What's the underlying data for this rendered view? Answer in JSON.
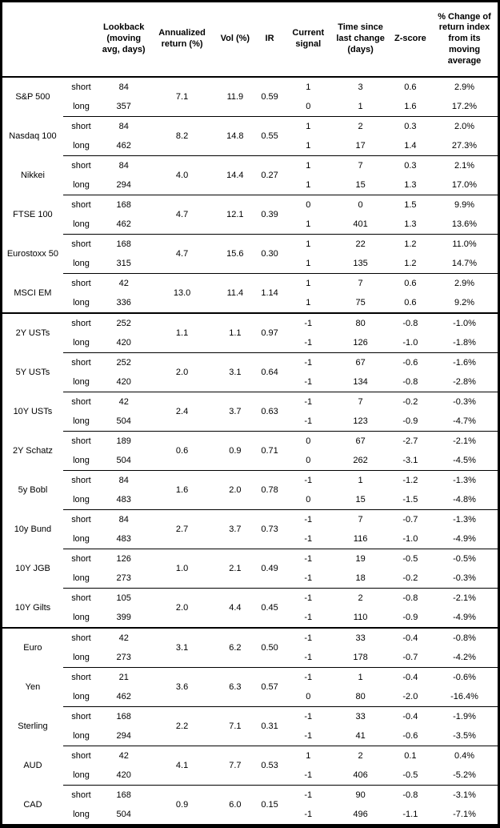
{
  "table": {
    "columns": [
      "Lookback (moving avg, days)",
      "Annualized return (%)",
      "Vol (%)",
      "IR",
      "Current signal",
      "Time since last change (days)",
      "Z-score",
      "% Change of return index from its moving average"
    ],
    "leg_labels": {
      "short": "short",
      "long": "long"
    },
    "groups": [
      {
        "asset": "S&P 500",
        "section_start": false,
        "annualized": "7.1",
        "vol": "11.9",
        "ir": "0.59",
        "short": {
          "lookback": "84",
          "signal": "1",
          "time": "3",
          "z": "0.6",
          "chg": "2.9%"
        },
        "long": {
          "lookback": "357",
          "signal": "0",
          "time": "1",
          "z": "1.6",
          "chg": "17.2%"
        }
      },
      {
        "asset": "Nasdaq 100",
        "section_start": false,
        "annualized": "8.2",
        "vol": "14.8",
        "ir": "0.55",
        "short": {
          "lookback": "84",
          "signal": "1",
          "time": "2",
          "z": "0.3",
          "chg": "2.0%"
        },
        "long": {
          "lookback": "462",
          "signal": "1",
          "time": "17",
          "z": "1.4",
          "chg": "27.3%"
        }
      },
      {
        "asset": "Nikkei",
        "section_start": false,
        "annualized": "4.0",
        "vol": "14.4",
        "ir": "0.27",
        "short": {
          "lookback": "84",
          "signal": "1",
          "time": "7",
          "z": "0.3",
          "chg": "2.1%"
        },
        "long": {
          "lookback": "294",
          "signal": "1",
          "time": "15",
          "z": "1.3",
          "chg": "17.0%"
        }
      },
      {
        "asset": "FTSE 100",
        "section_start": false,
        "annualized": "4.7",
        "vol": "12.1",
        "ir": "0.39",
        "short": {
          "lookback": "168",
          "signal": "0",
          "time": "0",
          "z": "1.5",
          "chg": "9.9%"
        },
        "long": {
          "lookback": "462",
          "signal": "1",
          "time": "401",
          "z": "1.3",
          "chg": "13.6%"
        }
      },
      {
        "asset": "Eurostoxx 50",
        "section_start": false,
        "annualized": "4.7",
        "vol": "15.6",
        "ir": "0.30",
        "short": {
          "lookback": "168",
          "signal": "1",
          "time": "22",
          "z": "1.2",
          "chg": "11.0%"
        },
        "long": {
          "lookback": "315",
          "signal": "1",
          "time": "135",
          "z": "1.2",
          "chg": "14.7%"
        }
      },
      {
        "asset": "MSCI EM",
        "section_start": false,
        "annualized": "13.0",
        "vol": "11.4",
        "ir": "1.14",
        "short": {
          "lookback": "42",
          "signal": "1",
          "time": "7",
          "z": "0.6",
          "chg": "2.9%"
        },
        "long": {
          "lookback": "336",
          "signal": "1",
          "time": "75",
          "z": "0.6",
          "chg": "9.2%"
        }
      },
      {
        "asset": "2Y USTs",
        "section_start": true,
        "annualized": "1.1",
        "vol": "1.1",
        "ir": "0.97",
        "short": {
          "lookback": "252",
          "signal": "-1",
          "time": "80",
          "z": "-0.8",
          "chg": "-1.0%"
        },
        "long": {
          "lookback": "420",
          "signal": "-1",
          "time": "126",
          "z": "-1.0",
          "chg": "-1.8%"
        }
      },
      {
        "asset": "5Y USTs",
        "section_start": false,
        "annualized": "2.0",
        "vol": "3.1",
        "ir": "0.64",
        "short": {
          "lookback": "252",
          "signal": "-1",
          "time": "67",
          "z": "-0.6",
          "chg": "-1.6%"
        },
        "long": {
          "lookback": "420",
          "signal": "-1",
          "time": "134",
          "z": "-0.8",
          "chg": "-2.8%"
        }
      },
      {
        "asset": "10Y USTs",
        "section_start": false,
        "annualized": "2.4",
        "vol": "3.7",
        "ir": "0.63",
        "short": {
          "lookback": "42",
          "signal": "-1",
          "time": "7",
          "z": "-0.2",
          "chg": "-0.3%"
        },
        "long": {
          "lookback": "504",
          "signal": "-1",
          "time": "123",
          "z": "-0.9",
          "chg": "-4.7%"
        }
      },
      {
        "asset": "2Y Schatz",
        "section_start": false,
        "annualized": "0.6",
        "vol": "0.9",
        "ir": "0.71",
        "short": {
          "lookback": "189",
          "signal": "0",
          "time": "67",
          "z": "-2.7",
          "chg": "-2.1%"
        },
        "long": {
          "lookback": "504",
          "signal": "0",
          "time": "262",
          "z": "-3.1",
          "chg": "-4.5%"
        }
      },
      {
        "asset": "5y Bobl",
        "section_start": false,
        "annualized": "1.6",
        "vol": "2.0",
        "ir": "0.78",
        "short": {
          "lookback": "84",
          "signal": "-1",
          "time": "1",
          "z": "-1.2",
          "chg": "-1.3%"
        },
        "long": {
          "lookback": "483",
          "signal": "0",
          "time": "15",
          "z": "-1.5",
          "chg": "-4.8%"
        }
      },
      {
        "asset": "10y Bund",
        "section_start": false,
        "annualized": "2.7",
        "vol": "3.7",
        "ir": "0.73",
        "short": {
          "lookback": "84",
          "signal": "-1",
          "time": "7",
          "z": "-0.7",
          "chg": "-1.3%"
        },
        "long": {
          "lookback": "483",
          "signal": "-1",
          "time": "116",
          "z": "-1.0",
          "chg": "-4.9%"
        }
      },
      {
        "asset": "10Y JGB",
        "section_start": false,
        "annualized": "1.0",
        "vol": "2.1",
        "ir": "0.49",
        "short": {
          "lookback": "126",
          "signal": "-1",
          "time": "19",
          "z": "-0.5",
          "chg": "-0.5%"
        },
        "long": {
          "lookback": "273",
          "signal": "-1",
          "time": "18",
          "z": "-0.2",
          "chg": "-0.3%"
        }
      },
      {
        "asset": "10Y Gilts",
        "section_start": false,
        "annualized": "2.0",
        "vol": "4.4",
        "ir": "0.45",
        "short": {
          "lookback": "105",
          "signal": "-1",
          "time": "2",
          "z": "-0.8",
          "chg": "-2.1%"
        },
        "long": {
          "lookback": "399",
          "signal": "-1",
          "time": "110",
          "z": "-0.9",
          "chg": "-4.9%"
        }
      },
      {
        "asset": "Euro",
        "section_start": true,
        "annualized": "3.1",
        "vol": "6.2",
        "ir": "0.50",
        "short": {
          "lookback": "42",
          "signal": "-1",
          "time": "33",
          "z": "-0.4",
          "chg": "-0.8%"
        },
        "long": {
          "lookback": "273",
          "signal": "-1",
          "time": "178",
          "z": "-0.7",
          "chg": "-4.2%"
        }
      },
      {
        "asset": "Yen",
        "section_start": false,
        "annualized": "3.6",
        "vol": "6.3",
        "ir": "0.57",
        "short": {
          "lookback": "21",
          "signal": "-1",
          "time": "1",
          "z": "-0.4",
          "chg": "-0.6%"
        },
        "long": {
          "lookback": "462",
          "signal": "0",
          "time": "80",
          "z": "-2.0",
          "chg": "-16.4%"
        }
      },
      {
        "asset": "Sterling",
        "section_start": false,
        "annualized": "2.2",
        "vol": "7.1",
        "ir": "0.31",
        "short": {
          "lookback": "168",
          "signal": "-1",
          "time": "33",
          "z": "-0.4",
          "chg": "-1.9%"
        },
        "long": {
          "lookback": "294",
          "signal": "-1",
          "time": "41",
          "z": "-0.6",
          "chg": "-3.5%"
        }
      },
      {
        "asset": "AUD",
        "section_start": false,
        "annualized": "4.1",
        "vol": "7.7",
        "ir": "0.53",
        "short": {
          "lookback": "42",
          "signal": "1",
          "time": "2",
          "z": "0.1",
          "chg": "0.4%"
        },
        "long": {
          "lookback": "420",
          "signal": "-1",
          "time": "406",
          "z": "-0.5",
          "chg": "-5.2%"
        }
      },
      {
        "asset": "CAD",
        "section_start": false,
        "annualized": "0.9",
        "vol": "6.0",
        "ir": "0.15",
        "short": {
          "lookback": "168",
          "signal": "-1",
          "time": "90",
          "z": "-0.8",
          "chg": "-3.1%"
        },
        "long": {
          "lookback": "504",
          "signal": "-1",
          "time": "496",
          "z": "-1.1",
          "chg": "-7.1%"
        }
      }
    ]
  }
}
